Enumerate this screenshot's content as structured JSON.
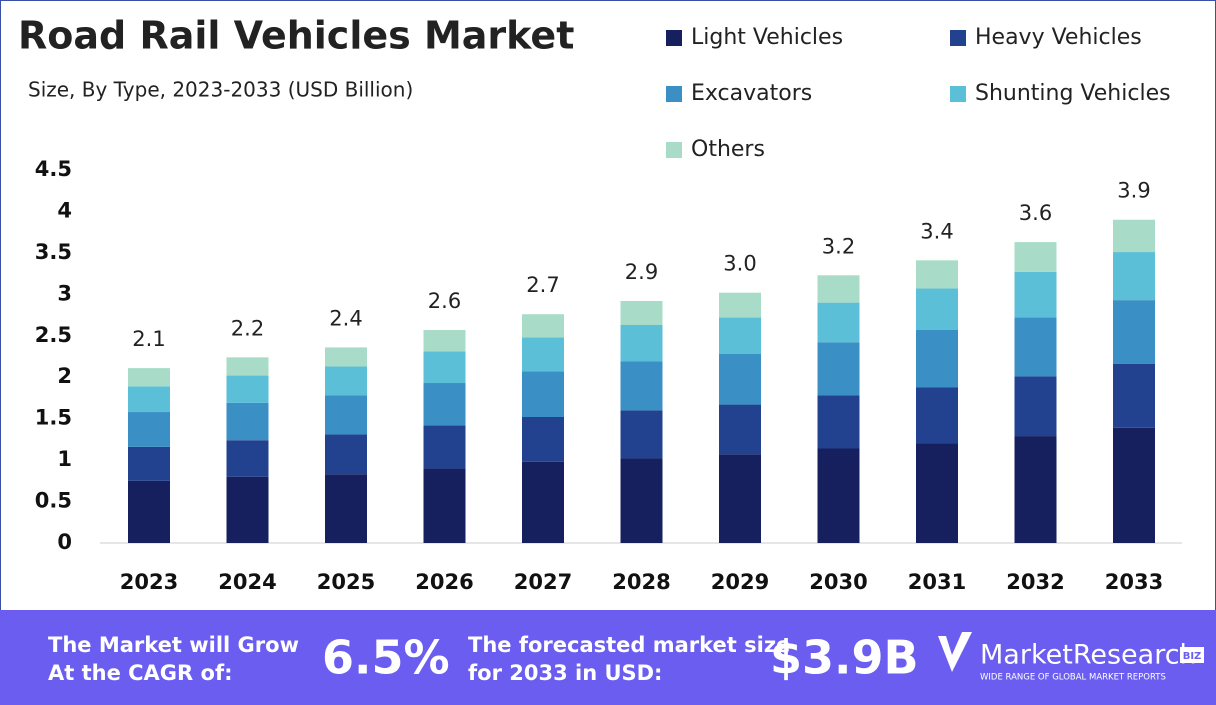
{
  "chart_data": {
    "type": "stacked_bar",
    "title": "Road Rail Vehicles Market",
    "subtitle": "Size, By Type, 2023-2033 (USD Billion)",
    "categories": [
      "2023",
      "2024",
      "2025",
      "2026",
      "2027",
      "2028",
      "2029",
      "2030",
      "2031",
      "2032",
      "2033"
    ],
    "series": [
      {
        "name": "Light Vehicles",
        "color": "#16205e",
        "values": [
          0.75,
          0.8,
          0.83,
          0.9,
          0.98,
          1.02,
          1.07,
          1.14,
          1.2,
          1.29,
          1.39
        ]
      },
      {
        "name": "Heavy Vehicles",
        "color": "#22418f",
        "values": [
          0.41,
          0.44,
          0.48,
          0.52,
          0.54,
          0.58,
          0.6,
          0.64,
          0.68,
          0.72,
          0.77
        ]
      },
      {
        "name": "Excavators",
        "color": "#3a8fc4",
        "values": [
          0.42,
          0.45,
          0.47,
          0.51,
          0.55,
          0.59,
          0.61,
          0.64,
          0.69,
          0.71,
          0.77
        ]
      },
      {
        "name": "Shunting Vehicles",
        "color": "#5bbfd8",
        "values": [
          0.31,
          0.33,
          0.35,
          0.38,
          0.41,
          0.44,
          0.44,
          0.48,
          0.5,
          0.55,
          0.58
        ]
      },
      {
        "name": "Others",
        "color": "#a8dcc8",
        "values": [
          0.22,
          0.22,
          0.23,
          0.26,
          0.28,
          0.29,
          0.3,
          0.33,
          0.34,
          0.36,
          0.39
        ]
      }
    ],
    "total_labels": [
      "2.1",
      "2.2",
      "2.4",
      "2.6",
      "2.7",
      "2.9",
      "3.0",
      "3.2",
      "3.4",
      "3.6",
      "3.9"
    ],
    "ylim": [
      0,
      4.5
    ],
    "yticks": [
      0,
      0.5,
      1,
      1.5,
      2,
      2.5,
      3,
      3.5,
      4,
      4.5
    ],
    "grid": false
  },
  "footer": {
    "cagr_text": "The Market will Grow At the CAGR of:",
    "cagr": "6.5%",
    "forecast_text": "The forecasted market size for 2033 in USD:",
    "forecast": "$3.9B",
    "logo": "MarketResearch",
    "logo_badge": "BIZ",
    "logo_tagline": "WIDE RANGE OF GLOBAL MARKET REPORTS"
  }
}
